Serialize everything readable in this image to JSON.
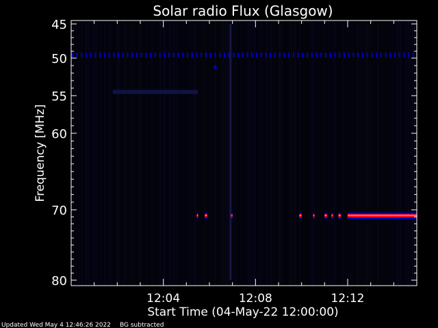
{
  "chart_data": {
    "type": "heatmap",
    "title": "Solar radio Flux (Glasgow)",
    "xlabel": "Start Time (04-May-22 12:00:00)",
    "ylabel": "Frequency [MHz]",
    "xlim_minutes": [
      0,
      15
    ],
    "ylim_mhz": [
      45,
      80
    ],
    "y_ticks": [
      45,
      50,
      55,
      60,
      70,
      80
    ],
    "y_tick_labels": [
      "45",
      "50",
      "55",
      "60",
      "70",
      "80"
    ],
    "x_ticks_minutes": [
      4,
      8,
      12
    ],
    "x_tick_labels": [
      "12:04",
      "12:08",
      "12:12"
    ],
    "colormap": [
      "#000000",
      "#0a0a2a",
      "#1a1a55",
      "#0000ff",
      "#ff0000",
      "#ff66aa"
    ],
    "background_color": "#000000",
    "features": [
      {
        "label": "50 MHz carrier",
        "freq_mhz": 49.5,
        "t_start_min": 0.0,
        "t_end_min": 15.0,
        "intensity": "medium",
        "pattern": "periodic ticks"
      },
      {
        "label": "isolated spike",
        "freq_mhz": 51.2,
        "t_start_min": 6.2,
        "t_end_min": 6.3,
        "intensity": "medium"
      },
      {
        "label": "faint band 54 MHz",
        "freq_mhz": 54.5,
        "t_start_min": 1.8,
        "t_end_min": 5.5,
        "intensity": "low"
      },
      {
        "label": "70.8 MHz bursts",
        "freq_mhz": 70.8,
        "segments_min": [
          [
            5.45,
            5.5
          ],
          [
            5.8,
            5.9
          ],
          [
            6.9,
            7.0
          ],
          [
            9.9,
            10.0
          ],
          [
            10.5,
            10.55
          ],
          [
            11.0,
            11.1
          ],
          [
            11.3,
            11.35
          ],
          [
            11.6,
            11.7
          ]
        ],
        "intensity": "high"
      },
      {
        "label": "70.8 MHz continuous emission",
        "freq_mhz": 70.8,
        "t_start_min": 12.0,
        "t_end_min": 15.0,
        "intensity": "high"
      },
      {
        "label": "broadband streak",
        "freq_mhz_range": [
          45,
          80
        ],
        "t_min": 6.9,
        "intensity": "low"
      }
    ]
  },
  "footer": {
    "updated": "Updated Wed May  4 12:46:26 2022",
    "note": "BG subtracted"
  }
}
